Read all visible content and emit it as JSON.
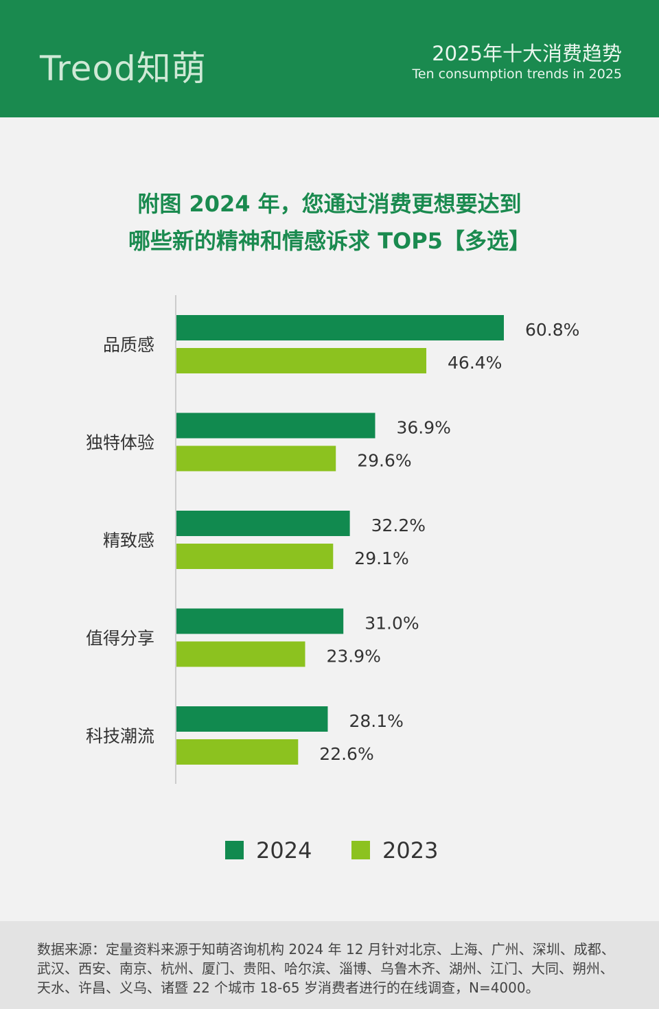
{
  "header": {
    "logo": "Treod知萌",
    "title_cn": "2025年十大消费趋势",
    "title_en": "Ten consumption trends in 2025"
  },
  "chart_title_line1": "附图 2024 年，您通过消费更想要达到",
  "chart_title_line2": "哪些新的精神和情感诉求 TOP5【多选】",
  "colors": {
    "2024": "#118a4f",
    "2023": "#8cc21f",
    "brand": "#1a8a4f"
  },
  "chart_data": {
    "type": "bar",
    "orientation": "horizontal",
    "categories": [
      "品质感",
      "独特体验",
      "精致感",
      "值得分享",
      "科技潮流"
    ],
    "series": [
      {
        "name": "2024",
        "values": [
          60.8,
          36.9,
          32.2,
          31.0,
          28.1
        ],
        "labels": [
          "60.8%",
          "36.9%",
          "32.2%",
          "31.0%",
          "28.1%"
        ]
      },
      {
        "name": "2023",
        "values": [
          46.4,
          29.6,
          29.1,
          23.9,
          22.6
        ],
        "labels": [
          "46.4%",
          "29.6%",
          "29.1%",
          "23.9%",
          "22.6%"
        ]
      }
    ],
    "unit": "%",
    "legend": "bottom",
    "grid": false
  },
  "footer": {
    "source": "数据来源：定量资料来源于知萌咨询机构 2024 年 12 月针对北京、上海、广州、深圳、成都、武汉、西安、南京、杭州、厦门、贵阳、哈尔滨、淄博、乌鲁木齐、湖州、江门、大同、朔州、天水、许昌、义乌、诸暨 22 个城市 18-65 岁消费者进行的在线调查，N=4000。"
  }
}
